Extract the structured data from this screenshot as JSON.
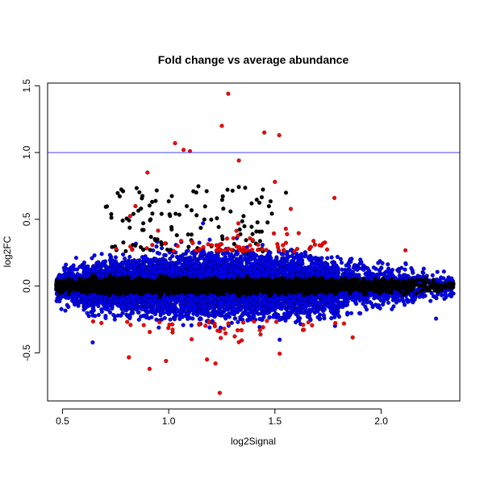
{
  "chart_data": {
    "type": "scatter",
    "title": "Fold change vs average abundance",
    "xlabel": "log2Signal",
    "ylabel": "log2FC",
    "xlim": [
      0.43,
      2.37
    ],
    "ylim": [
      -0.86,
      1.52
    ],
    "x_ticks": [
      "0.5",
      "1.0",
      "1.5",
      "2.0"
    ],
    "x_tick_values": [
      0.5,
      1.0,
      1.5,
      2.0
    ],
    "y_ticks": [
      "-0.5",
      "0.0",
      "0.5",
      "1.0",
      "1.5"
    ],
    "y_tick_values": [
      -0.5,
      0.0,
      0.5,
      1.0,
      1.5
    ],
    "reference_line": {
      "y": 1.0,
      "color": "#4444ff"
    },
    "grid": false,
    "legend": "none",
    "series_colors": {
      "core": "#000000",
      "spread": "#0000ff",
      "outlier": "#ff0000"
    },
    "highlighted_points": [
      {
        "x": 1.28,
        "y": 1.44
      },
      {
        "x": 1.25,
        "y": 1.2
      },
      {
        "x": 1.45,
        "y": 1.15
      },
      {
        "x": 1.52,
        "y": 1.13
      },
      {
        "x": 1.03,
        "y": 1.07
      },
      {
        "x": 1.07,
        "y": 1.02
      },
      {
        "x": 1.1,
        "y": 1.01
      },
      {
        "x": 0.9,
        "y": 0.85
      },
      {
        "x": 1.33,
        "y": 0.94
      },
      {
        "x": 1.5,
        "y": 0.78
      },
      {
        "x": 1.78,
        "y": 0.66
      },
      {
        "x": 1.24,
        "y": -0.8
      },
      {
        "x": 0.91,
        "y": -0.62
      },
      {
        "x": 1.22,
        "y": -0.58
      },
      {
        "x": 1.18,
        "y": -0.55
      },
      {
        "x": 1.33,
        "y": -0.42
      }
    ]
  }
}
